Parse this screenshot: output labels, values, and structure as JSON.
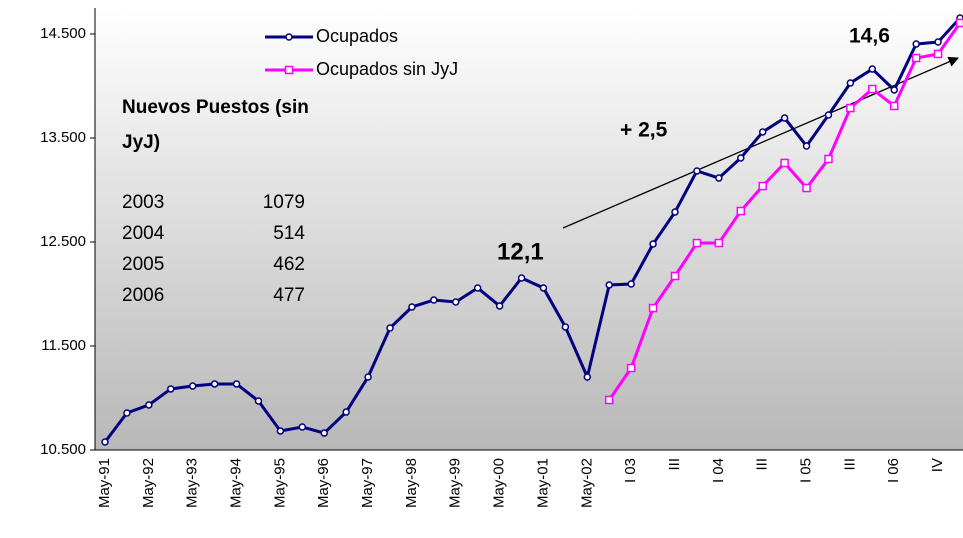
{
  "chart_data": {
    "type": "line",
    "categories": [
      "May-91",
      null,
      "May-92",
      null,
      "May-93",
      null,
      "May-94",
      null,
      "May-95",
      null,
      "May-96",
      null,
      "May-97",
      null,
      "May-98",
      null,
      "May-99",
      null,
      "May-00",
      null,
      "May-01",
      null,
      "May-02",
      null,
      "I 03",
      null,
      "III",
      null,
      "I 04",
      null,
      "III",
      null,
      "I 05",
      null,
      "III",
      null,
      "I 06",
      null,
      "IV",
      null
    ],
    "series": [
      {
        "name": "Ocupados",
        "color": "#000080",
        "values": [
          10577,
          10856,
          10933,
          11087,
          11115,
          11135,
          11135,
          10971,
          10683,
          10721,
          10663,
          10865,
          11202,
          11673,
          11875,
          11942,
          11923,
          12058,
          11885,
          12154,
          12058,
          11683,
          11202,
          12087,
          12096,
          12481,
          12788,
          13183,
          13115,
          13308,
          13558,
          13692,
          13423,
          13721,
          14029,
          14163,
          13962,
          14404,
          14423,
          14654
        ]
      },
      {
        "name": "Ocupados sin JyJ",
        "color": "#ff00ff",
        "values": [
          null,
          null,
          null,
          null,
          null,
          null,
          null,
          null,
          null,
          null,
          null,
          null,
          null,
          null,
          null,
          null,
          null,
          null,
          null,
          null,
          null,
          null,
          null,
          10981,
          11288,
          11865,
          12173,
          12490,
          12490,
          12798,
          13038,
          13260,
          13019,
          13298,
          13788,
          13971,
          13808,
          14269,
          14308,
          14606
        ]
      }
    ],
    "ylim": [
      10500,
      14750
    ],
    "yticks": [
      {
        "value": 10500,
        "label": "10.500"
      },
      {
        "value": 11500,
        "label": "11.500"
      },
      {
        "value": 12500,
        "label": "12.500"
      },
      {
        "value": 13500,
        "label": "13.500"
      },
      {
        "value": 14500,
        "label": "14.500"
      }
    ],
    "annotations": {
      "box_title": "Nuevos Puestos (sin",
      "box_title_2": "JyJ)",
      "rows": [
        [
          "2003",
          "1079"
        ],
        [
          "2004",
          "514"
        ],
        [
          "2005",
          "462"
        ],
        [
          "2006",
          "477"
        ]
      ],
      "start": "12,1",
      "change": "+ 2,5",
      "end": "14,6"
    }
  }
}
